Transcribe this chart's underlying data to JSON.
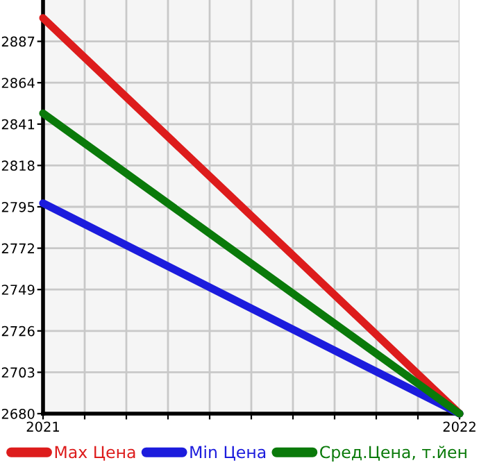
{
  "chart_data": {
    "type": "line",
    "x": [
      2021,
      2022
    ],
    "series": [
      {
        "name": "Max Цена",
        "color": "#dd1c1c",
        "values": [
          2900,
          2680
        ]
      },
      {
        "name": "Min Цена",
        "color": "#1c1cdd",
        "values": [
          2797,
          2680
        ]
      },
      {
        "name": "Сред.Цена, т.йен",
        "color": "#0a7a0a",
        "values": [
          2847,
          2680
        ]
      }
    ],
    "xlim": [
      2021,
      2022
    ],
    "ylim": [
      2680,
      2910
    ],
    "xticks": [
      2021,
      {
        "value": 2021.1,
        "label": null
      },
      {
        "value": 2021.2,
        "label": null
      },
      {
        "value": 2021.3,
        "label": null
      },
      {
        "value": 2021.4,
        "label": null
      },
      {
        "value": 2021.5,
        "label": null
      },
      {
        "value": 2021.6,
        "label": null
      },
      {
        "value": 2021.7,
        "label": null
      },
      {
        "value": 2021.8,
        "label": null
      },
      {
        "value": 2021.9,
        "label": null
      },
      2022
    ],
    "yticks": [
      2680,
      2703,
      2726,
      2749,
      2772,
      2795,
      2818,
      2841,
      2864,
      2887
    ],
    "grid": true,
    "legend": "bottom",
    "marker": "none",
    "line_style": "solid"
  }
}
